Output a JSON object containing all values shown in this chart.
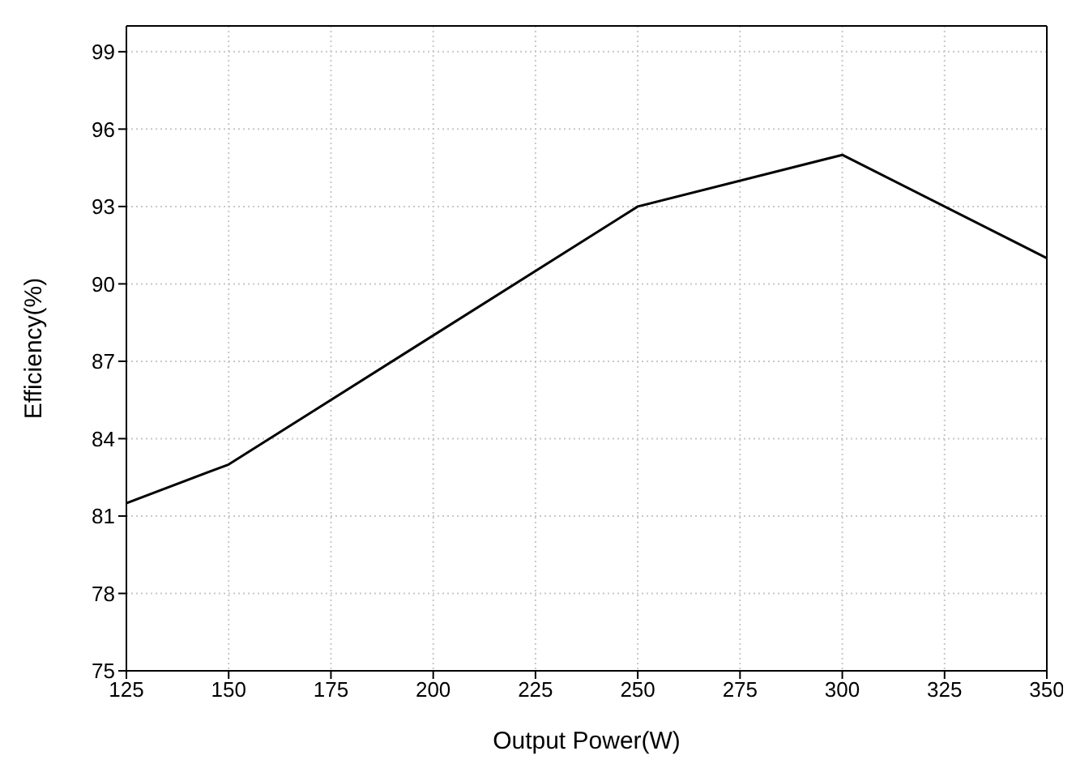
{
  "chart_data": {
    "type": "line",
    "xlabel": "Output Power(W)",
    "ylabel": "Efficiency(%)",
    "x": [
      125,
      150,
      250,
      300,
      350
    ],
    "series": [
      {
        "color": "#000000",
        "values": [
          81.5,
          83,
          93,
          95,
          91
        ]
      }
    ],
    "xlim": [
      125,
      350
    ],
    "xticks": [
      125,
      150,
      175,
      200,
      225,
      250,
      275,
      300,
      325,
      350
    ],
    "ylim": [
      75,
      100
    ],
    "yticks": [
      75,
      78,
      81,
      84,
      87,
      90,
      93,
      96,
      99
    ],
    "grid": true,
    "marker": "none",
    "line_style": "solid",
    "legend": false
  }
}
